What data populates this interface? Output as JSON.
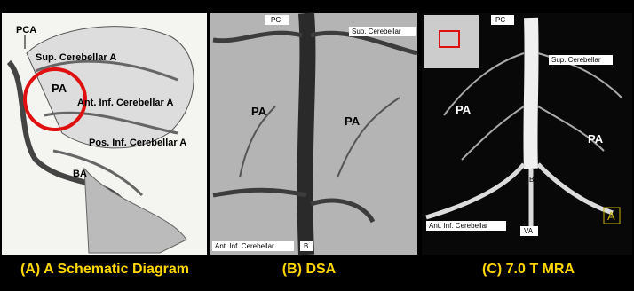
{
  "panels": [
    {
      "caption": "(A) A Schematic Diagram",
      "labels": [
        "PCA",
        "Sup. Cerebellar A",
        "PA",
        "Ant. Inf. Cerebellar A",
        "Pos. Inf. Cerebellar A",
        "BA"
      ]
    },
    {
      "caption": "(B) DSA",
      "labels": [
        "PC",
        "Sup. Cerebellar",
        "PA",
        "PA",
        "Ant. Inf. Cerebellar",
        "B"
      ]
    },
    {
      "caption": "(C) 7.0 T MRA",
      "labels": [
        "PC",
        "Sup. Cerebellar",
        "PA",
        "PA",
        "B",
        "Ant. Inf. Cerebellar",
        "VA",
        "A"
      ]
    }
  ]
}
